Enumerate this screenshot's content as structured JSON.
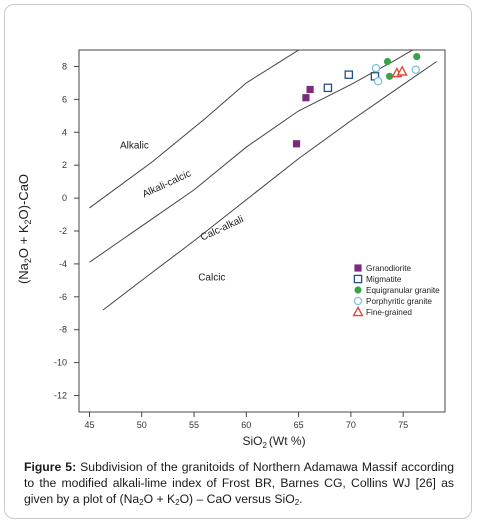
{
  "chart_data": {
    "type": "scatter",
    "xlabel_main": "SiO",
    "xlabel_sub": "2",
    "xlabel_tail": "(Wt %)",
    "ylabel_parts": [
      "(Na",
      "2",
      "O + K",
      "2",
      "O)-CaO"
    ],
    "xlim": [
      44,
      79
    ],
    "ylim": [
      -13,
      9
    ],
    "x_ticks": [
      45,
      50,
      55,
      60,
      65,
      70,
      75
    ],
    "y_ticks": [
      8,
      6,
      4,
      2,
      0,
      -2,
      -4,
      -6,
      -8,
      -10,
      -12
    ],
    "boundaries": [
      {
        "name": "alkalic/alkali-calcic",
        "points": [
          [
            45,
            -0.6
          ],
          [
            51,
            2.2
          ],
          [
            56,
            4.8
          ],
          [
            60,
            7.0
          ],
          [
            63,
            8.2
          ],
          [
            66,
            9.4
          ]
        ]
      },
      {
        "name": "alkali-calcic/calc-alkalic",
        "points": [
          [
            45,
            -3.9
          ],
          [
            50,
            -1.7
          ],
          [
            55,
            0.5
          ],
          [
            60,
            3.1
          ],
          [
            65,
            5.3
          ],
          [
            70,
            6.9
          ],
          [
            74,
            8.3
          ],
          [
            77,
            9.4
          ]
        ]
      },
      {
        "name": "calc-alkalic/calcic",
        "points": [
          [
            46.3,
            -6.8
          ],
          [
            50,
            -5.0
          ],
          [
            55,
            -2.6
          ],
          [
            60,
            -0.1
          ],
          [
            65,
            2.4
          ],
          [
            70,
            4.7
          ],
          [
            75,
            6.9
          ],
          [
            78.2,
            8.3
          ]
        ]
      }
    ],
    "field_labels": [
      {
        "text": "Alkalic",
        "x": 49.3,
        "y": 3.0,
        "angle": 0
      },
      {
        "text": "Alkali-calcic",
        "x": 52.5,
        "y": 0.7,
        "angle": -25
      },
      {
        "text": "Calc-alkali",
        "x": 57.8,
        "y": -2.0,
        "angle": -25
      },
      {
        "text": "Calcic",
        "x": 56.7,
        "y": -5.0,
        "angle": 0
      }
    ],
    "series": [
      {
        "name": "Granodiorite",
        "marker": "square-filled",
        "color": "#7b2a7e",
        "points": [
          [
            64.8,
            3.3
          ],
          [
            65.7,
            6.1
          ],
          [
            66.1,
            6.6
          ]
        ]
      },
      {
        "name": "Migmatite",
        "marker": "square-open",
        "color": "#1f4e8c",
        "points": [
          [
            67.8,
            6.7
          ],
          [
            69.8,
            7.5
          ],
          [
            72.3,
            7.4
          ]
        ]
      },
      {
        "name": "Equigranular granite",
        "marker": "circle-filled",
        "color": "#3aa34a",
        "points": [
          [
            73.5,
            8.3
          ],
          [
            73.7,
            7.4
          ],
          [
            76.3,
            8.6
          ]
        ]
      },
      {
        "name": "Porphyritic granite",
        "marker": "circle-open",
        "color": "#7fc3d8",
        "points": [
          [
            72.4,
            7.9
          ],
          [
            72.6,
            7.1
          ],
          [
            76.2,
            7.8
          ]
        ]
      },
      {
        "name": "Fine-grained",
        "marker": "triangle-open",
        "color": "#e04a3c",
        "points": [
          [
            74.4,
            7.6
          ],
          [
            74.9,
            7.7
          ]
        ]
      }
    ],
    "legend_position": "lower-right",
    "grid": false
  },
  "caption": {
    "label": "Figure 5:",
    "text_1": " Subdivision of the granitoids of Northern Adamawa Massif according to the modified alkali-lime index of Frost BR, Barnes CG, Collins WJ [26] as given by a plot of (Na",
    "sub_1": "2",
    "text_2": "O + K",
    "sub_2": "2",
    "text_3": "O) – CaO versus SiO",
    "sub_3": "2",
    "text_4": "."
  }
}
